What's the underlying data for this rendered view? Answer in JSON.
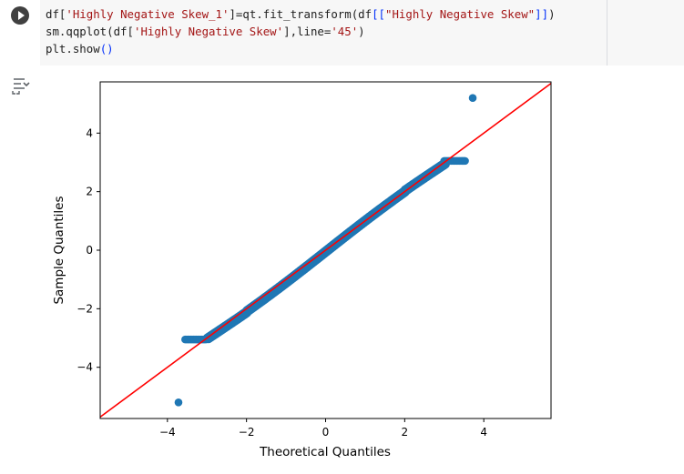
{
  "cell": {
    "run_icon": "play-circle-icon",
    "output_icon": "output-toggle-icon",
    "code_lines": [
      [
        {
          "t": "df[",
          "c": ""
        },
        {
          "t": "'Highly Negative Skew_1'",
          "c": "str"
        },
        {
          "t": "]=qt.fit_transform(df",
          "c": ""
        },
        {
          "t": "[[",
          "c": "brk"
        },
        {
          "t": "\"Highly Negative Skew\"",
          "c": "str"
        },
        {
          "t": "]]",
          "c": "brk"
        },
        {
          "t": ")",
          "c": ""
        }
      ],
      [
        {
          "t": "sm.qqplot(df[",
          "c": ""
        },
        {
          "t": "'Highly Negative Skew'",
          "c": "str"
        },
        {
          "t": "],line=",
          "c": ""
        },
        {
          "t": "'45'",
          "c": "str"
        },
        {
          "t": ")",
          "c": ""
        }
      ],
      [
        {
          "t": "plt.show",
          "c": ""
        },
        {
          "t": "()",
          "c": "brk"
        }
      ]
    ]
  },
  "chart_data": {
    "type": "scatter",
    "xlabel": "Theoretical Quantiles",
    "ylabel": "Sample Quantiles",
    "xlim": [
      -5.7,
      5.7
    ],
    "ylim": [
      -5.75,
      5.75
    ],
    "xticks": [
      -4,
      -2,
      0,
      2,
      4
    ],
    "yticks": [
      -4,
      -2,
      0,
      2,
      4
    ],
    "xtick_labels": [
      "−4",
      "−2",
      "0",
      "2",
      "4"
    ],
    "ytick_labels": [
      "−4",
      "−2",
      "0",
      "2",
      "4"
    ],
    "grid": false,
    "point_color": "#1f77b4",
    "line_color": "#ff0000",
    "reference_line": {
      "label": "45-degree line",
      "slope": 1,
      "intercept": 0
    },
    "outliers": [
      [
        -3.72,
        -5.2
      ],
      [
        3.72,
        5.2
      ]
    ],
    "clipped_low": {
      "y": -3.05,
      "x_from": -3.55,
      "x_to": -3.0
    },
    "clipped_high": {
      "y": 3.05,
      "x_from": 3.0,
      "x_to": 3.55
    },
    "diagonal_range": [
      -3.0,
      3.0
    ]
  }
}
